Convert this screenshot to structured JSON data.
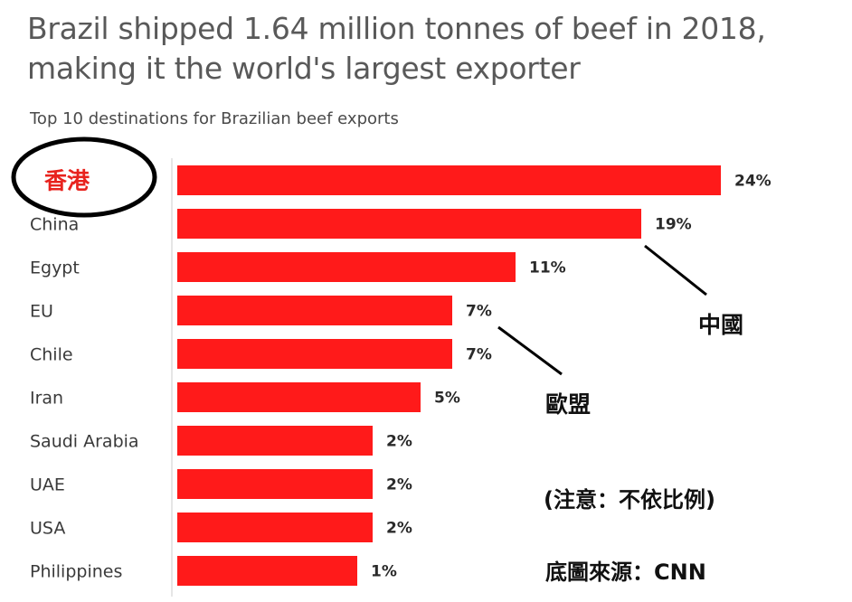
{
  "title": "Brazil shipped 1.64 million tonnes of beef in 2018, making it the world's largest exporter",
  "subtitle": "Top 10 destinations for Brazilian beef exports",
  "colors": {
    "bar": "#ff1a1a",
    "highlight_label": "#e8231e",
    "circle": "#000000"
  },
  "chart_data": {
    "type": "bar",
    "orientation": "horizontal",
    "categories": [
      "香港",
      "China",
      "Egypt",
      "EU",
      "Chile",
      "Iran",
      "Saudi Arabia",
      "UAE",
      "USA",
      "Philippines"
    ],
    "values": [
      24,
      19,
      11,
      7,
      7,
      5,
      2,
      2,
      2,
      1
    ],
    "value_labels": [
      "24%",
      "19%",
      "11%",
      "7%",
      "7%",
      "5%",
      "2%",
      "2%",
      "2%",
      "1%"
    ],
    "unit": "%",
    "xlim": [
      0,
      24
    ],
    "highlighted_category": "香港"
  },
  "annotations": {
    "china": "中國",
    "eu": "歐盟",
    "note": "(注意：不依比例)",
    "source": "底圖來源：CNN"
  }
}
